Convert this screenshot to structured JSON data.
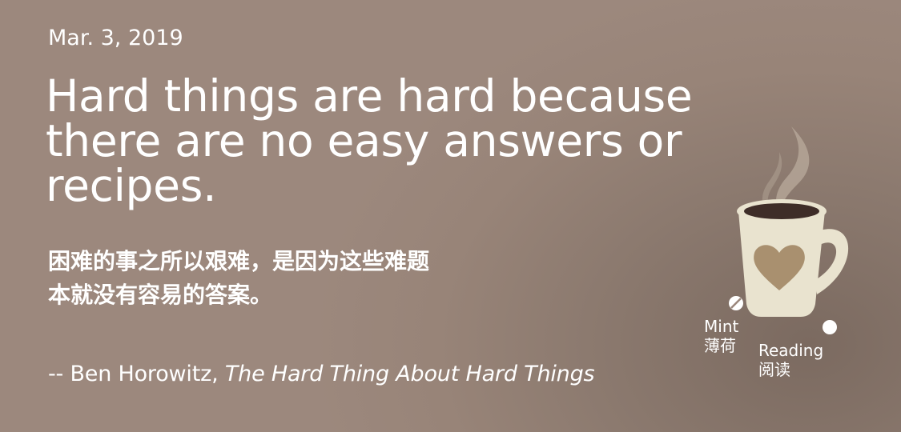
{
  "date": "Mar. 3, 2019",
  "quote_en": {
    "line1": "Hard things are hard because",
    "line2": "there are no easy answers or",
    "line3": "recipes."
  },
  "quote_zh": {
    "line1": "困难的事之所以艰难，是因为这些难题",
    "line2": "本就没有容易的答案。"
  },
  "attribution": {
    "prefix": "-- Ben Horowitz, ",
    "book": "The Hard Thing About Hard Things"
  },
  "brand": {
    "mint_en": "Mint",
    "mint_zh": "薄荷",
    "reading_en": "Reading",
    "reading_zh": "阅读"
  },
  "colors": {
    "background": "#9a867b",
    "text": "#ffffff",
    "mug_body": "#e9e3cf",
    "heart": "#a9906f",
    "coffee": "#3e2d28"
  },
  "icons": [
    "coffee-mug-icon",
    "steam-icon",
    "heart-icon"
  ]
}
